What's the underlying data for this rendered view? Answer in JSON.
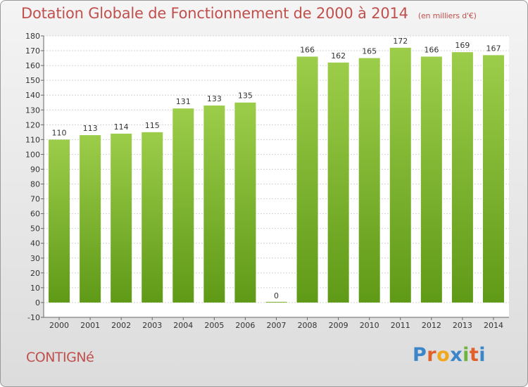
{
  "title": "Dotation Globale de Fonctionnement de 2000 à 2014",
  "unit_note": "(en milliers d'€)",
  "commune": "CONTIGNé",
  "logo": {
    "letters": [
      "P",
      "r",
      "o",
      "x",
      "i",
      "t",
      "i"
    ],
    "colors": [
      "#3a86c8",
      "#e0602c",
      "#f2a81c",
      "#3a86c8",
      "#6cb33f",
      "#e0602c",
      "#3a86c8"
    ]
  },
  "chart_data": {
    "type": "bar",
    "categories": [
      "2000",
      "2001",
      "2002",
      "2003",
      "2004",
      "2005",
      "2006",
      "2007",
      "2008",
      "2009",
      "2010",
      "2011",
      "2012",
      "2013",
      "2014"
    ],
    "values": [
      110,
      113,
      114,
      115,
      131,
      133,
      135,
      0,
      166,
      162,
      165,
      172,
      166,
      169,
      167
    ],
    "ylim": [
      -10,
      180
    ],
    "yticks": [
      -10,
      0,
      10,
      20,
      30,
      40,
      50,
      60,
      70,
      80,
      90,
      100,
      110,
      120,
      130,
      140,
      150,
      160,
      170,
      180
    ],
    "grid": true,
    "bar_color_top": "#9ccd4a",
    "bar_color_bottom": "#5f9a17"
  }
}
